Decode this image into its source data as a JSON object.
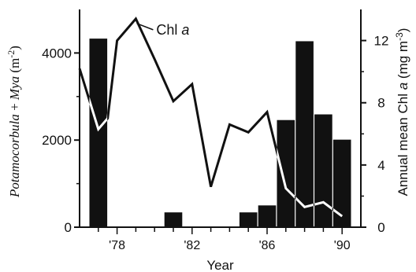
{
  "chart_data": {
    "type": "bar+line",
    "x_tick_labels": [
      "'78",
      "'82",
      "'86",
      "'90"
    ],
    "x_tick_years": [
      1978,
      1982,
      1986,
      1990
    ],
    "xlim": [
      1976,
      1991
    ],
    "xlabel": "Year",
    "ylabel_left_parts": [
      "Potamocorbula",
      " + ",
      "Mya",
      " (m",
      "-2",
      ")"
    ],
    "ylabel_right_parts": [
      "Annual mean Chl ",
      "a",
      " (mg m",
      "-3",
      ")"
    ],
    "ylim_left": [
      0,
      5000
    ],
    "ylim_right": [
      0,
      14
    ],
    "yticks_left": [
      "0",
      "2000",
      "4000"
    ],
    "yticks_right": [
      "0",
      "4",
      "8",
      "12"
    ],
    "yticks_left_values": [
      0,
      2000,
      4000
    ],
    "yticks_right_values": [
      0,
      4,
      8,
      12
    ],
    "bars": {
      "name": "Potamocorbula + Mya",
      "color": "#111111",
      "x": [
        1977,
        1981,
        1985,
        1986,
        1987,
        1988,
        1989,
        1990
      ],
      "values": [
        4330,
        340,
        340,
        500,
        2460,
        4270,
        2590,
        2010
      ]
    },
    "line": {
      "name": "Chl a",
      "label_parts": [
        "Chl ",
        "a"
      ],
      "color": "#111111",
      "x": [
        1976,
        1977,
        1977.5,
        1978,
        1979,
        1980,
        1981,
        1982,
        1983,
        1984,
        1985,
        1986,
        1987,
        1988,
        1989,
        1990
      ],
      "values": [
        10.2,
        6.3,
        7.0,
        12.0,
        13.4,
        10.8,
        8.1,
        9.2,
        2.6,
        6.6,
        6.1,
        7.4,
        2.5,
        1.3,
        1.6,
        0.7
      ]
    },
    "grid": false,
    "legend": "none"
  }
}
